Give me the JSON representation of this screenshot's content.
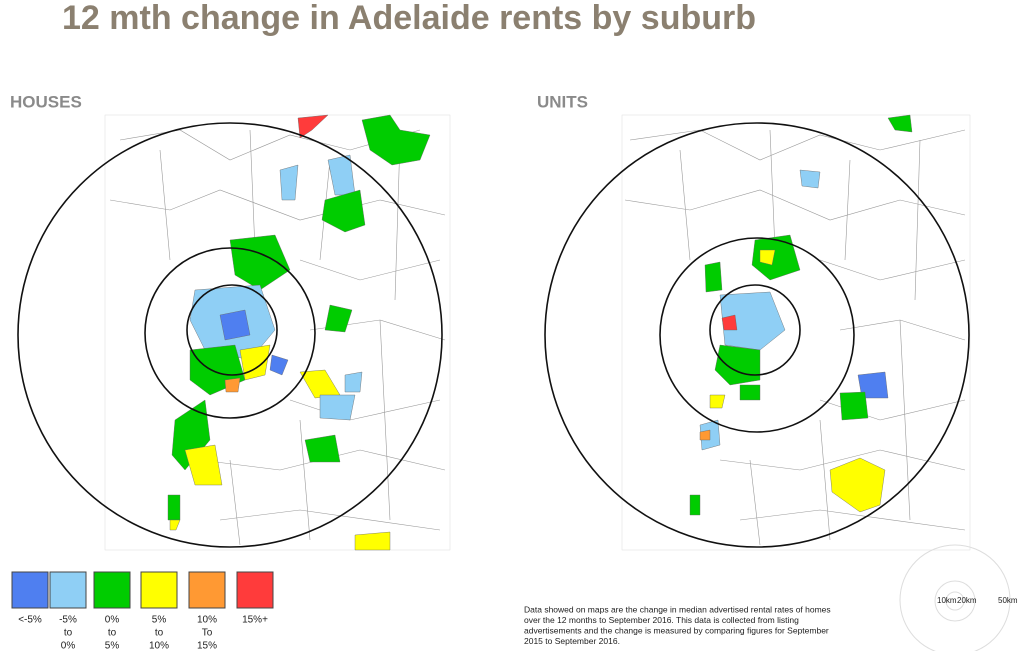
{
  "title": "12 mth change in Adelaide rents by suburb",
  "maps": [
    {
      "label": "HOUSES"
    },
    {
      "label": "UNITS"
    }
  ],
  "legend": [
    {
      "lines": [
        "<-5%"
      ],
      "color": "#4f7ff0"
    },
    {
      "lines": [
        "-5%",
        "to",
        "0%"
      ],
      "color": "#8fcff5"
    },
    {
      "lines": [
        "0%",
        "to",
        "5%"
      ],
      "color": "#00cc00"
    },
    {
      "lines": [
        "5%",
        "to",
        "10%"
      ],
      "color": "#ffff00"
    },
    {
      "lines": [
        "10%",
        "To",
        "15%"
      ],
      "color": "#ff9933"
    },
    {
      "lines": [
        "15%+"
      ],
      "color": "#ff3b3b"
    }
  ],
  "note": [
    "Data showed on maps are the change in median advertised rental rates of homes",
    "over the 12 months to September 2016. This data is collected from listing",
    "advertisements and the change is measured by comparing figures for September",
    "2015 to September 2016."
  ],
  "scale": [
    "10km",
    "20km",
    "50km"
  ]
}
